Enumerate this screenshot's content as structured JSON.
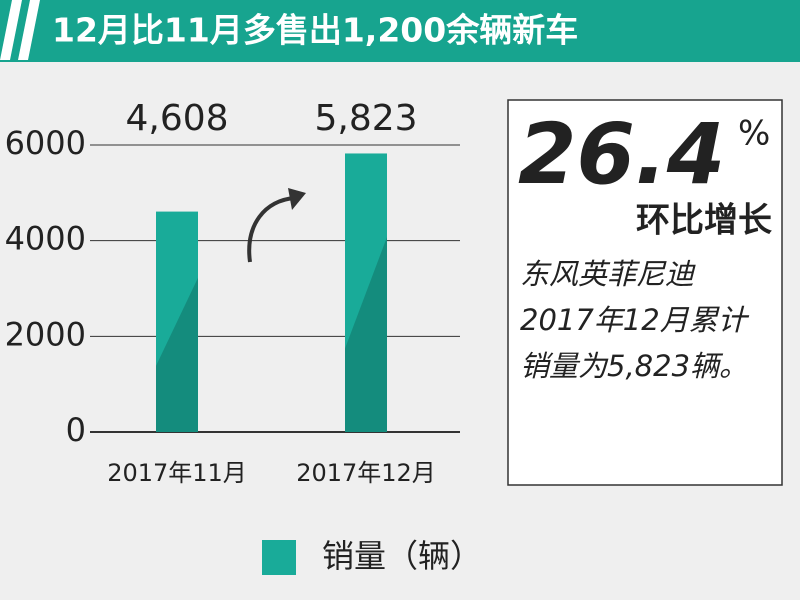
{
  "chart_data": {
    "type": "bar",
    "title": "12月比11月多售出1,200余辆新车",
    "categories": [
      "2017年11月",
      "2017年12月"
    ],
    "series": [
      {
        "name": "销量（辆）",
        "color": "#19ab99",
        "values": [
          4608,
          5823
        ],
        "value_labels": [
          "4,608",
          "5,823"
        ]
      }
    ],
    "ylim": [
      0,
      6000
    ],
    "yticks": [
      0,
      2000,
      4000,
      6000
    ],
    "grid": true,
    "annotations": {
      "big": "26.4",
      "unit": "%",
      "label": "环比增长",
      "text": [
        "东风英菲尼迪",
        "2017年12月累计",
        "销量为5,823辆。"
      ]
    }
  }
}
